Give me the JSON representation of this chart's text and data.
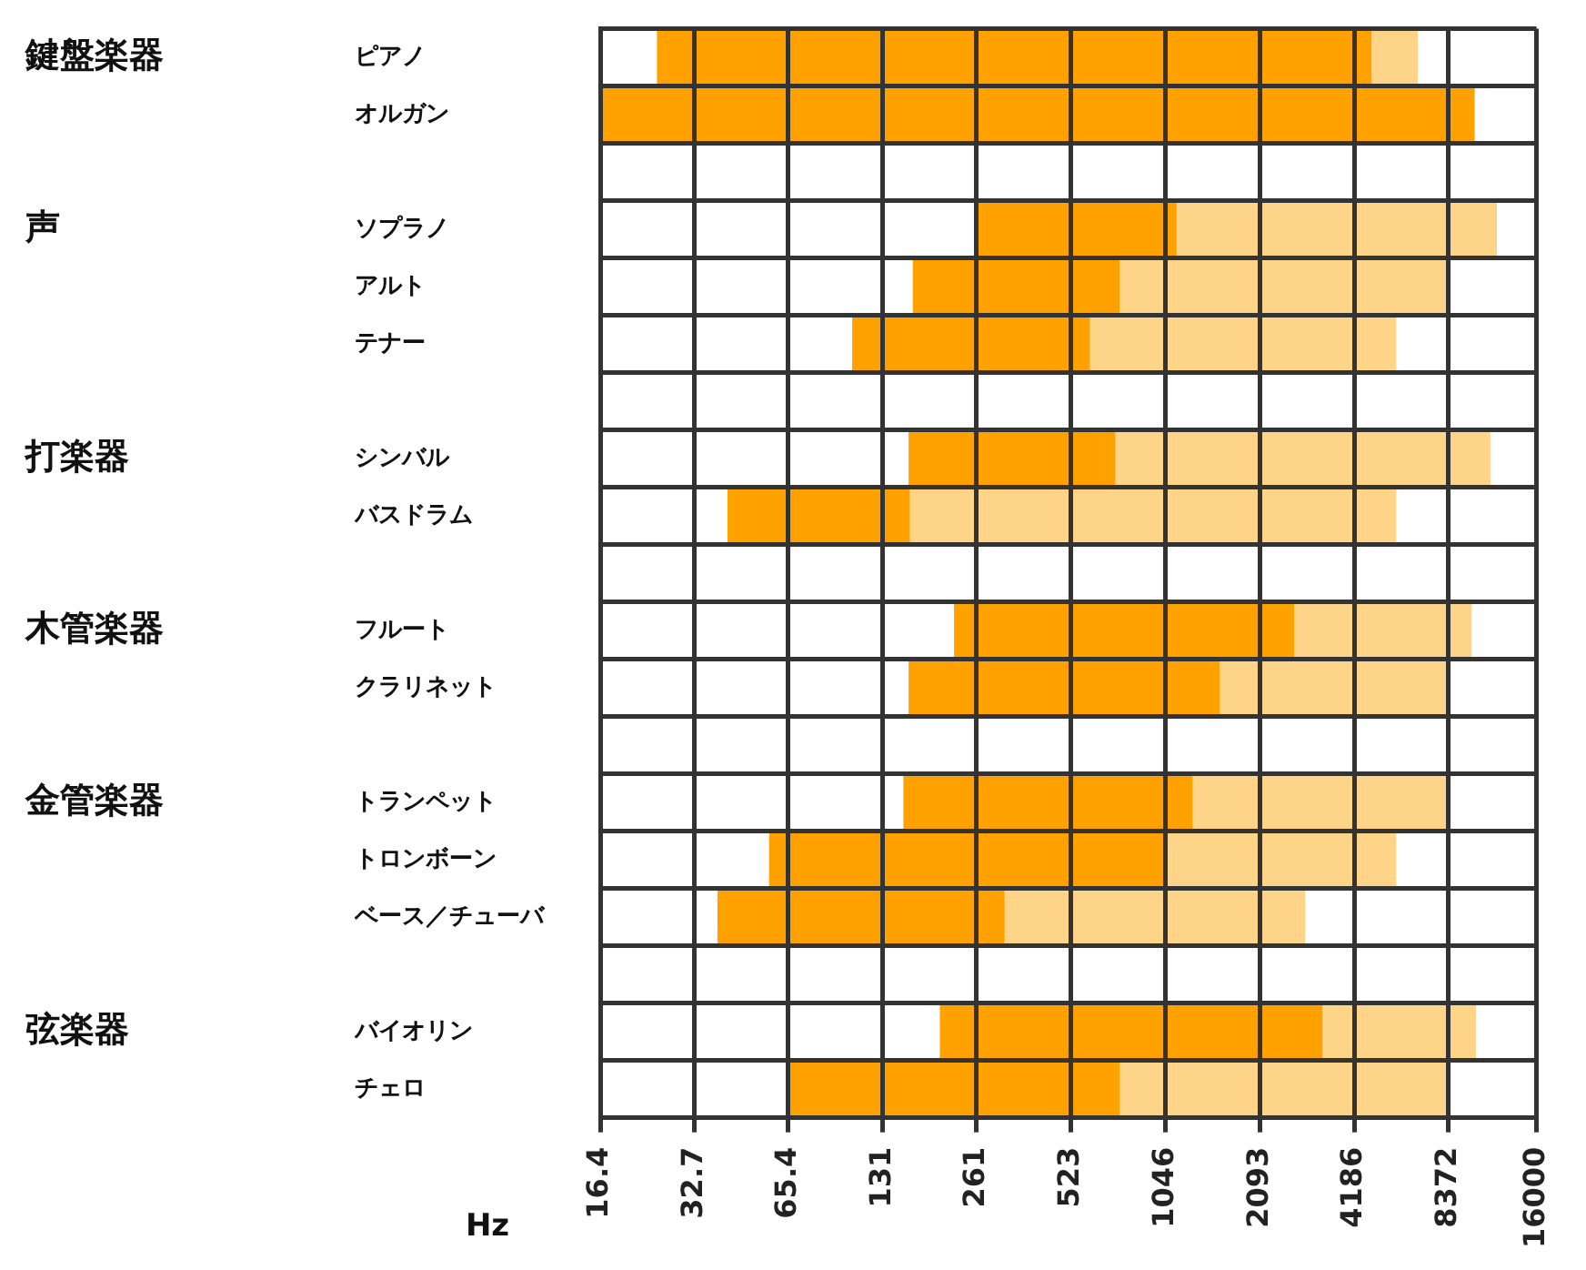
{
  "chart_data": {
    "type": "bar",
    "orientation": "horizontal",
    "xlabel": "Hz",
    "log": "x",
    "categories": [
      "ピアノ",
      "オルガン",
      null,
      "ソプラノ",
      "アルト",
      "テナー",
      null,
      "シンバル",
      "バスドラム",
      null,
      "フルート",
      "クラリネット",
      null,
      "トランペット",
      "トロンボーン",
      "ベース／チューバ",
      null,
      "バイオリン",
      "チェロ"
    ],
    "series": [
      {
        "color": "#ffa200",
        "base": [
          25,
          16.4,
          null,
          261,
          164,
          105,
          null,
          159,
          42,
          null,
          222,
          159,
          null,
          153,
          57,
          39,
          null,
          200,
          65.4
        ],
        "values": [
          4709,
          10084,
          null,
          869,
          579,
          492,
          null,
          561,
          117,
          null,
          2458,
          1391,
          null,
          1117,
          989,
          280,
          null,
          3100,
          678
        ]
      },
      {
        "color": "#fed488",
        "base": [
          4734,
          10100,
          null,
          1130,
          743,
          597,
          null,
          720,
          159,
          null,
          2680,
          1550,
          null,
          1270,
          1046,
          319,
          null,
          3300,
          743
        ],
        "values": [
          1926,
          0,
          null,
          10770,
          7629,
          5083,
          null,
          10630,
          5521,
          null,
          7210,
          6822,
          null,
          7102,
          4634,
          2591,
          null,
          6900,
          7629
        ]
      }
    ],
    "xlim": [
      16.4,
      16000
    ],
    "xticks": [
      16.4,
      32.7,
      65.4,
      131,
      261,
      523,
      1046,
      2093,
      4186,
      8372,
      16000
    ],
    "grid": true,
    "annotations": [
      "鍵盤楽器",
      "声",
      "打楽器",
      "木管楽器",
      "金管楽器",
      "弦楽器"
    ]
  }
}
